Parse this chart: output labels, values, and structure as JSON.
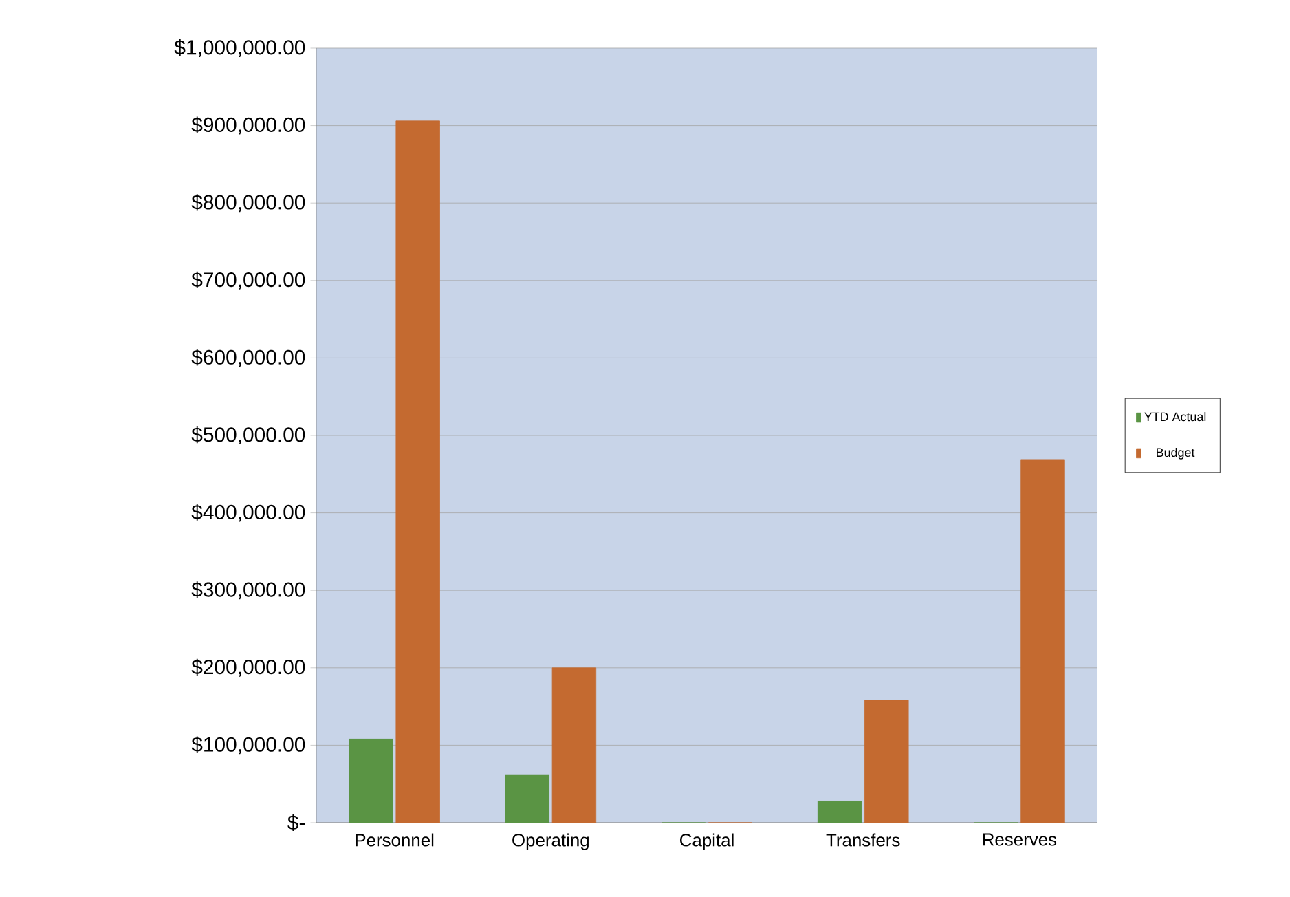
{
  "chart_data": {
    "type": "bar",
    "categories": [
      "Personnel",
      "Operating",
      "Capital",
      "Transfers",
      "Reserves"
    ],
    "series": [
      {
        "name": "YTD Actual",
        "color": "#5a9444",
        "values": [
          108000,
          62000,
          0,
          28000,
          0
        ]
      },
      {
        "name": "Budget",
        "color": "#c46a30",
        "values": [
          906000,
          200000,
          0,
          158000,
          469000
        ]
      }
    ],
    "ylim": [
      0,
      1000000
    ],
    "yticks": [
      {
        "value": 0,
        "label": "$-"
      },
      {
        "value": 100000,
        "label": "$100,000.00"
      },
      {
        "value": 200000,
        "label": "$200,000.00"
      },
      {
        "value": 300000,
        "label": "$300,000.00"
      },
      {
        "value": 400000,
        "label": "$400,000.00"
      },
      {
        "value": 500000,
        "label": "$500,000.00"
      },
      {
        "value": 600000,
        "label": "$600,000.00"
      },
      {
        "value": 700000,
        "label": "$700,000.00"
      },
      {
        "value": 800000,
        "label": "$800,000.00"
      },
      {
        "value": 900000,
        "label": "$900,000.00"
      },
      {
        "value": 1000000,
        "label": "$1,000,000.00"
      }
    ],
    "grid": "y",
    "legend": "right"
  }
}
